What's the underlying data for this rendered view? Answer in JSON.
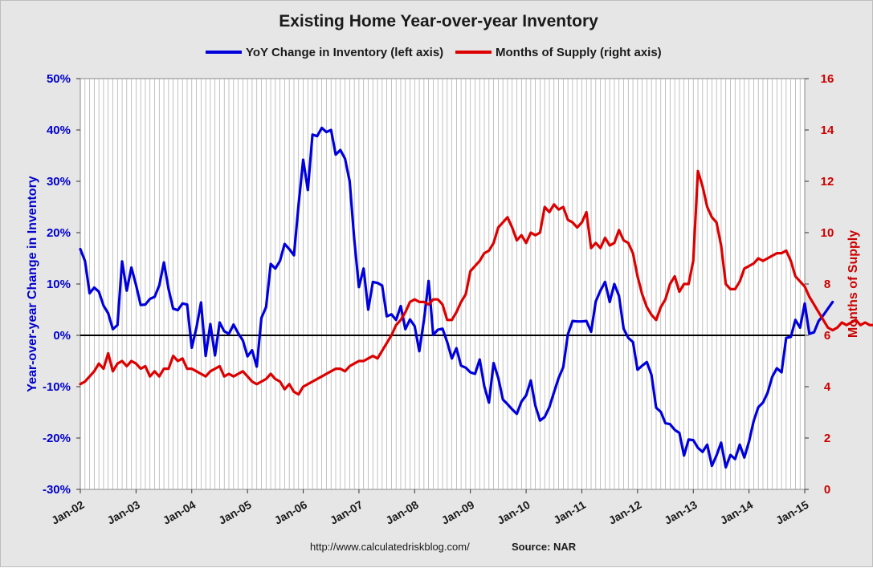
{
  "chart_data": {
    "type": "line",
    "title": "Existing Home Year-over-year Inventory",
    "ylabel": "Year-over-year Change in Inventory",
    "y2label": "Months of Supply",
    "x_ticks": [
      "Jan-02",
      "Jan-03",
      "Jan-04",
      "Jan-05",
      "Jan-06",
      "Jan-07",
      "Jan-08",
      "Jan-09",
      "Jan-10",
      "Jan-11",
      "Jan-12",
      "Jan-13",
      "Jan-14",
      "Jan-15"
    ],
    "x_start": "Jan-02",
    "x_end": "Jan-15",
    "ylim": [
      -30,
      50
    ],
    "y_ticks": [
      "-30%",
      "-20%",
      "-10%",
      "0%",
      "10%",
      "20%",
      "30%",
      "40%",
      "50%"
    ],
    "y2lim": [
      0,
      16
    ],
    "y2_ticks": [
      "0",
      "2",
      "4",
      "6",
      "8",
      "10",
      "12",
      "14",
      "16"
    ],
    "grid": "vertical, monthly",
    "legend_position": "top",
    "series": [
      {
        "name": "YoY Change in Inventory (left axis)",
        "axis": "left",
        "color": "#0000dd",
        "values": [
          16.8,
          14.5,
          8.2,
          9.3,
          8.5,
          5.8,
          4.3,
          1.2,
          2.0,
          14.4,
          8.7,
          13.2,
          9.8,
          5.9,
          6.0,
          7.1,
          7.5,
          9.7,
          14.2,
          9.0,
          5.2,
          4.9,
          6.2,
          6.0,
          -2.4,
          1.5,
          6.4,
          -4.0,
          2.2,
          -3.9,
          2.5,
          0.8,
          0.3,
          2.1,
          0.4,
          -1.0,
          -4.1,
          -2.9,
          -6.1,
          3.4,
          5.5,
          13.9,
          13.0,
          14.5,
          17.8,
          16.8,
          15.6,
          25.5,
          34.2,
          28.3,
          39.1,
          38.8,
          40.4,
          39.6,
          40.0,
          35.2,
          36.1,
          34.4,
          30.0,
          18.7,
          9.4,
          13.0,
          5.0,
          10.4,
          10.2,
          9.7,
          3.7,
          4.1,
          3.0,
          5.7,
          1.2,
          3.1,
          1.8,
          -3.1,
          3.0,
          10.6,
          0.1,
          1.1,
          1.3,
          -1.3,
          -4.5,
          -2.5,
          -5.9,
          -6.3,
          -7.2,
          -7.5,
          -4.7,
          -9.9,
          -13.1,
          -5.4,
          -8.3,
          -12.5,
          -13.4,
          -14.4,
          -15.3,
          -12.9,
          -11.7,
          -8.8,
          -13.7,
          -16.6,
          -15.9,
          -14.0,
          -11.1,
          -8.3,
          -6.2,
          0.2,
          2.8,
          2.7,
          2.7,
          2.8,
          0.7,
          6.6,
          8.7,
          10.4,
          6.5,
          10.0,
          7.7,
          1.3,
          -0.5,
          -1.3,
          -6.7,
          -5.9,
          -5.2,
          -7.7,
          -14.1,
          -14.9,
          -17.1,
          -17.3,
          -18.4,
          -19.0,
          -23.4,
          -20.3,
          -20.4,
          -21.9,
          -22.7,
          -21.3,
          -25.4,
          -23.4,
          -20.9,
          -25.7,
          -23.3,
          -24.1,
          -21.3,
          -23.8,
          -20.7,
          -16.7,
          -14.0,
          -13.1,
          -11.2,
          -8.1,
          -6.4,
          -7.2,
          -0.5,
          -0.3,
          3.0,
          1.5,
          6.2,
          0.3,
          0.6,
          2.8,
          3.9,
          5.2,
          6.5
        ]
      },
      {
        "name": "Months of Supply (right axis)",
        "axis": "right",
        "color": "#dd0000",
        "values": [
          4.1,
          4.2,
          4.4,
          4.6,
          4.9,
          4.7,
          5.3,
          4.6,
          4.9,
          5.0,
          4.8,
          5.0,
          4.9,
          4.7,
          4.8,
          4.4,
          4.6,
          4.4,
          4.7,
          4.7,
          5.2,
          5.0,
          5.1,
          4.7,
          4.7,
          4.6,
          4.5,
          4.4,
          4.6,
          4.7,
          4.8,
          4.4,
          4.5,
          4.4,
          4.5,
          4.6,
          4.4,
          4.2,
          4.1,
          4.2,
          4.3,
          4.5,
          4.3,
          4.2,
          3.9,
          4.1,
          3.8,
          3.7,
          4.0,
          4.1,
          4.2,
          4.3,
          4.4,
          4.5,
          4.6,
          4.7,
          4.7,
          4.6,
          4.8,
          4.9,
          5.0,
          5.0,
          5.1,
          5.2,
          5.1,
          5.4,
          5.7,
          6.0,
          6.4,
          6.6,
          6.9,
          7.3,
          7.4,
          7.3,
          7.3,
          7.2,
          7.4,
          7.4,
          7.2,
          6.6,
          6.6,
          6.9,
          7.3,
          7.6,
          8.5,
          8.7,
          8.9,
          9.2,
          9.3,
          9.6,
          10.2,
          10.4,
          10.6,
          10.2,
          9.7,
          9.9,
          9.6,
          10.0,
          9.9,
          10.0,
          11.0,
          10.8,
          11.1,
          10.9,
          11.0,
          10.5,
          10.4,
          10.2,
          10.4,
          10.8,
          9.4,
          9.6,
          9.4,
          9.8,
          9.5,
          9.6,
          10.1,
          9.7,
          9.6,
          9.2,
          8.3,
          7.6,
          7.1,
          6.8,
          6.6,
          7.1,
          7.4,
          8.0,
          8.3,
          7.7,
          8.0,
          8.0,
          8.9,
          12.4,
          11.8,
          11.0,
          10.6,
          10.4,
          9.5,
          8.0,
          7.8,
          7.8,
          8.1,
          8.6,
          8.7,
          8.8,
          9.0,
          8.9,
          9.0,
          9.1,
          9.2,
          9.2,
          9.3,
          8.9,
          8.3,
          8.1,
          7.9,
          7.5,
          7.2,
          6.9,
          6.6,
          6.3,
          6.2,
          6.3,
          6.5,
          6.4,
          6.5,
          6.6,
          6.4,
          6.5,
          6.4,
          6.4,
          6.2,
          6.0,
          5.6,
          5.5,
          5.3,
          5.2,
          5.0,
          4.8,
          4.6,
          4.5,
          4.4,
          4.6,
          4.6,
          4.8,
          5.0,
          5.2,
          5.1,
          5.1,
          5.1,
          5.0,
          5.0,
          5.0,
          5.0,
          5.0,
          5.0,
          5.1,
          4.9,
          5.0,
          5.1,
          4.8,
          5.1,
          4.6,
          4.8,
          4.9,
          5.0,
          5.1,
          5.6,
          5.4,
          5.4
        ]
      }
    ],
    "source_url": "http://www.calculatedriskblog.com/",
    "source_label": "Source: NAR"
  }
}
